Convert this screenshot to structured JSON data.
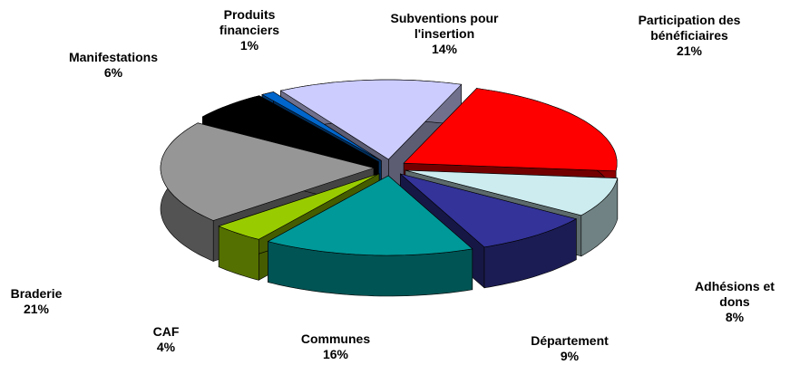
{
  "chart_data": {
    "type": "pie",
    "categories": [
      "Participation des bénéficiaires",
      "Adhésions et dons",
      "Département",
      "Communes",
      "CAF",
      "Braderie",
      "Manifestations",
      "Produits financiers",
      "Subventions pour l'insertion"
    ],
    "values": [
      21,
      8,
      9,
      16,
      4,
      21,
      6,
      1,
      14
    ],
    "value_labels": [
      "21%",
      "8%",
      "9%",
      "16%",
      "4%",
      "21%",
      "6%",
      "1%",
      "14%"
    ],
    "colors": [
      "#ff0000",
      "#ccecf0",
      "#333399",
      "#009999",
      "#99cc00",
      "#969696",
      "#000000",
      "#0066cc",
      "#ccccff"
    ]
  }
}
